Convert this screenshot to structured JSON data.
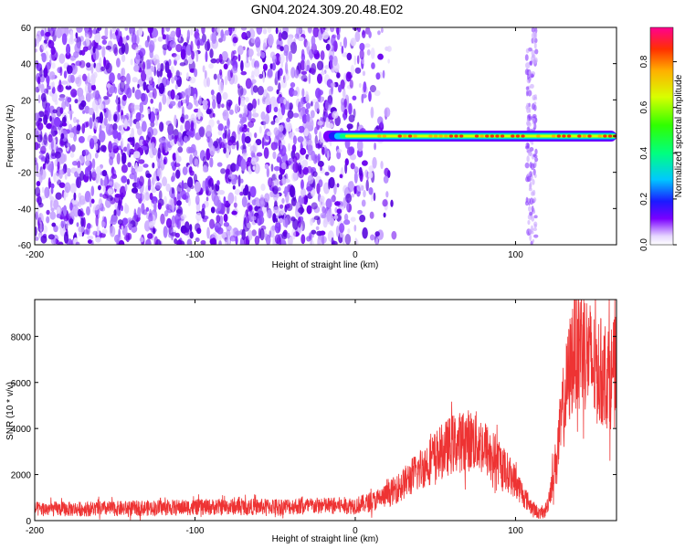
{
  "figure": {
    "title": "GN04.2024.309.20.48.E02"
  },
  "chart_data": [
    {
      "type": "heatmap",
      "xlabel": "Height of straight line (km)",
      "ylabel": "Frequency (Hz)",
      "xlim": [
        -200,
        163
      ],
      "ylim": [
        -60,
        60
      ],
      "x_ticks": [
        -200,
        -100,
        0,
        100
      ],
      "y_ticks": [
        -60,
        -40,
        -20,
        0,
        20,
        40,
        60
      ],
      "colorbar": {
        "label": "Normalized spectral amplitude",
        "range": [
          0,
          0.95
        ],
        "ticks": [
          0,
          0.2,
          0.4,
          0.6,
          0.8
        ],
        "colormap": "rainbow (violet to magenta)"
      },
      "features": [
        {
          "description": "scattered low amplitude noise",
          "x_range": [
            -200,
            20
          ],
          "y_range": [
            -60,
            60
          ],
          "amplitude": 0.1
        },
        {
          "description": "narrow band at 0 Hz",
          "x_range": [
            -20,
            163
          ],
          "y_center": 0,
          "amplitude_peak": 0.9
        },
        {
          "description": "vertical streak",
          "x_center": 110,
          "y_range": [
            -60,
            60
          ],
          "amplitude": 0.1
        }
      ],
      "grid": false
    },
    {
      "type": "line",
      "xlabel": "Height of straight line (km)",
      "ylabel": "SNR (10 * v/v)",
      "xlim": [
        -200,
        163
      ],
      "ylim": [
        0,
        9600
      ],
      "x_ticks": [
        -200,
        -100,
        0,
        100
      ],
      "y_ticks": [
        0,
        2000,
        4000,
        6000,
        8000
      ],
      "color": "#ee3333",
      "grid": false,
      "series": [
        {
          "name": "",
          "x": [
            -200,
            -180,
            -150,
            -120,
            -100,
            -80,
            -60,
            -40,
            -20,
            0,
            10,
            20,
            30,
            40,
            50,
            60,
            70,
            75,
            80,
            90,
            100,
            105,
            110,
            115,
            118,
            120,
            125,
            130,
            135,
            138,
            140,
            145,
            150,
            155,
            160,
            163
          ],
          "y": [
            500,
            500,
            520,
            560,
            580,
            600,
            600,
            620,
            640,
            660,
            800,
            1100,
            1600,
            2200,
            2800,
            3300,
            3500,
            3450,
            3200,
            2500,
            1700,
            1100,
            600,
            300,
            350,
            700,
            2500,
            5000,
            7000,
            7800,
            8000,
            7200,
            6500,
            6400,
            6300,
            6500
          ]
        }
      ]
    }
  ]
}
